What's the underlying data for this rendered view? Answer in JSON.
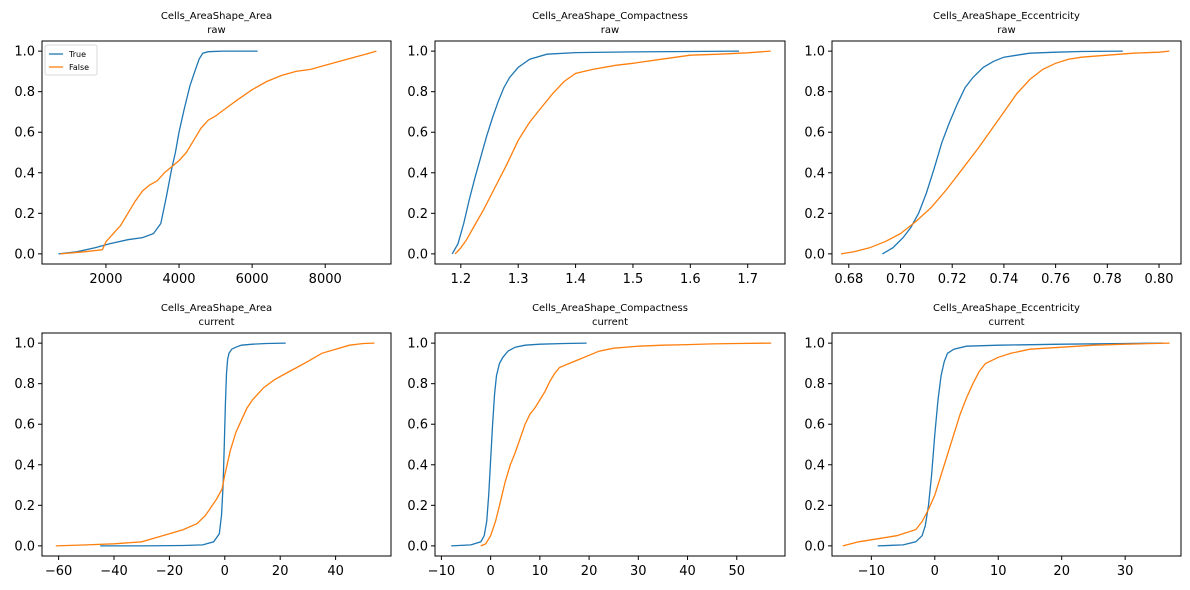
{
  "chart_data": [
    {
      "type": "line",
      "title": "Cells_AreaShape_Area",
      "subtitle": "raw",
      "xlim": [
        250,
        9800
      ],
      "ylim": [
        -0.05,
        1.05
      ],
      "xticks": [
        2000,
        4000,
        6000,
        8000
      ],
      "xtick_labels": [
        "2000",
        "4000",
        "6000",
        "8000"
      ],
      "yticks": [
        0,
        0.2,
        0.4,
        0.6,
        0.8,
        1
      ],
      "ytick_labels": [
        "0.0",
        "0.2",
        "0.4",
        "0.6",
        "0.8",
        "1.0"
      ],
      "legend": {
        "placement": "upper-left",
        "entries": [
          "True",
          "False"
        ]
      },
      "series": [
        {
          "name": "True",
          "color": "#1f77b4",
          "x": [
            700,
            1200,
            1700,
            2100,
            2600,
            3000,
            3300,
            3500,
            3650,
            3800,
            3900,
            4000,
            4150,
            4300,
            4450,
            4550,
            4650,
            4800,
            5200,
            6150
          ],
          "y": [
            0,
            0.01,
            0.03,
            0.05,
            0.07,
            0.08,
            0.1,
            0.15,
            0.28,
            0.42,
            0.5,
            0.6,
            0.72,
            0.83,
            0.91,
            0.96,
            0.99,
            0.997,
            1.0,
            1.0
          ]
        },
        {
          "name": "False",
          "color": "#ff7f0e",
          "x": [
            750,
            1400,
            1900,
            2000,
            2200,
            2400,
            2600,
            2800,
            3000,
            3200,
            3400,
            3600,
            3800,
            4000,
            4200,
            4400,
            4600,
            4800,
            5000,
            5300,
            5600,
            6000,
            6400,
            6800,
            7200,
            7600,
            8000,
            8400,
            8800,
            9200,
            9400
          ],
          "y": [
            0,
            0.01,
            0.02,
            0.06,
            0.1,
            0.14,
            0.2,
            0.26,
            0.31,
            0.34,
            0.36,
            0.4,
            0.43,
            0.46,
            0.5,
            0.56,
            0.62,
            0.66,
            0.68,
            0.72,
            0.76,
            0.81,
            0.85,
            0.88,
            0.9,
            0.91,
            0.93,
            0.95,
            0.97,
            0.99,
            1.0
          ]
        }
      ]
    },
    {
      "type": "line",
      "title": "Cells_AreaShape_Compactness",
      "subtitle": "raw",
      "xlim": [
        1.155,
        1.765
      ],
      "ylim": [
        -0.05,
        1.05
      ],
      "xticks": [
        1.2,
        1.3,
        1.4,
        1.5,
        1.6,
        1.7
      ],
      "xtick_labels": [
        "1.2",
        "1.3",
        "1.4",
        "1.5",
        "1.6",
        "1.7"
      ],
      "yticks": [
        0,
        0.2,
        0.4,
        0.6,
        0.8,
        1
      ],
      "ytick_labels": [
        "0.0",
        "0.2",
        "0.4",
        "0.6",
        "0.8",
        "1.0"
      ],
      "series": [
        {
          "name": "True",
          "color": "#1f77b4",
          "x": [
            1.185,
            1.195,
            1.205,
            1.215,
            1.225,
            1.235,
            1.245,
            1.255,
            1.265,
            1.275,
            1.285,
            1.3,
            1.32,
            1.35,
            1.4,
            1.5,
            1.6,
            1.685
          ],
          "y": [
            0,
            0.05,
            0.15,
            0.27,
            0.38,
            0.48,
            0.58,
            0.67,
            0.75,
            0.82,
            0.87,
            0.92,
            0.96,
            0.985,
            0.993,
            0.996,
            0.998,
            1.0
          ]
        },
        {
          "name": "False",
          "color": "#ff7f0e",
          "x": [
            1.19,
            1.2,
            1.21,
            1.22,
            1.24,
            1.26,
            1.28,
            1.3,
            1.32,
            1.34,
            1.36,
            1.38,
            1.4,
            1.43,
            1.47,
            1.5,
            1.55,
            1.6,
            1.65,
            1.7,
            1.74
          ],
          "y": [
            0,
            0.03,
            0.07,
            0.12,
            0.22,
            0.33,
            0.44,
            0.56,
            0.65,
            0.72,
            0.79,
            0.85,
            0.89,
            0.91,
            0.93,
            0.94,
            0.96,
            0.98,
            0.985,
            0.992,
            1.0
          ]
        }
      ]
    },
    {
      "type": "line",
      "title": "Cells_AreaShape_Eccentricity",
      "subtitle": "raw",
      "xlim": [
        0.6735,
        0.8085
      ],
      "ylim": [
        -0.05,
        1.05
      ],
      "xticks": [
        0.68,
        0.7,
        0.72,
        0.74,
        0.76,
        0.78,
        0.8
      ],
      "xtick_labels": [
        "0.68",
        "0.70",
        "0.72",
        "0.74",
        "0.76",
        "0.78",
        "0.80"
      ],
      "yticks": [
        0,
        0.2,
        0.4,
        0.6,
        0.8,
        1
      ],
      "ytick_labels": [
        "0.0",
        "0.2",
        "0.4",
        "0.6",
        "0.8",
        "1.0"
      ],
      "series": [
        {
          "name": "True",
          "color": "#1f77b4",
          "x": [
            0.693,
            0.697,
            0.701,
            0.704,
            0.707,
            0.71,
            0.713,
            0.716,
            0.719,
            0.722,
            0.725,
            0.728,
            0.732,
            0.736,
            0.74,
            0.745,
            0.75,
            0.76,
            0.77,
            0.786
          ],
          "y": [
            0,
            0.03,
            0.08,
            0.13,
            0.2,
            0.3,
            0.42,
            0.55,
            0.65,
            0.74,
            0.82,
            0.87,
            0.92,
            0.95,
            0.97,
            0.98,
            0.99,
            0.995,
            0.998,
            1.0
          ]
        },
        {
          "name": "False",
          "color": "#ff7f0e",
          "x": [
            0.677,
            0.682,
            0.688,
            0.694,
            0.7,
            0.706,
            0.712,
            0.718,
            0.724,
            0.73,
            0.735,
            0.74,
            0.745,
            0.75,
            0.755,
            0.76,
            0.765,
            0.77,
            0.78,
            0.79,
            0.8,
            0.804
          ],
          "y": [
            0,
            0.01,
            0.03,
            0.06,
            0.1,
            0.16,
            0.23,
            0.32,
            0.42,
            0.52,
            0.61,
            0.7,
            0.79,
            0.86,
            0.91,
            0.94,
            0.96,
            0.97,
            0.98,
            0.99,
            0.995,
            1.0
          ]
        }
      ]
    },
    {
      "type": "line",
      "title": "Cells_AreaShape_Area",
      "subtitle": "current",
      "xlim": [
        -66,
        60
      ],
      "ylim": [
        -0.05,
        1.05
      ],
      "xticks": [
        -60,
        -40,
        -20,
        0,
        20,
        40
      ],
      "xtick_labels": [
        "−60",
        "−40",
        "−20",
        "0",
        "20",
        "40"
      ],
      "yticks": [
        0,
        0.2,
        0.4,
        0.6,
        0.8,
        1
      ],
      "ytick_labels": [
        "0.0",
        "0.2",
        "0.4",
        "0.6",
        "0.8",
        "1.0"
      ],
      "series": [
        {
          "name": "True",
          "color": "#1f77b4",
          "x": [
            -45,
            -30,
            -15,
            -8,
            -4,
            -2,
            -1.2,
            -0.6,
            -0.2,
            0.2,
            0.6,
            1,
            1.5,
            2.5,
            4,
            6,
            10,
            15,
            22
          ],
          "y": [
            0,
            0,
            0.002,
            0.005,
            0.02,
            0.06,
            0.15,
            0.3,
            0.5,
            0.7,
            0.85,
            0.92,
            0.95,
            0.97,
            0.98,
            0.99,
            0.995,
            0.998,
            1.0
          ]
        },
        {
          "name": "False",
          "color": "#ff7f0e",
          "x": [
            -61,
            -50,
            -40,
            -30,
            -25,
            -20,
            -15,
            -10,
            -7,
            -5,
            -3,
            -1,
            0,
            2,
            4,
            6,
            8,
            10,
            14,
            18,
            22,
            26,
            30,
            35,
            40,
            45,
            50,
            54
          ],
          "y": [
            0,
            0.005,
            0.01,
            0.02,
            0.04,
            0.06,
            0.08,
            0.11,
            0.15,
            0.19,
            0.23,
            0.28,
            0.35,
            0.47,
            0.56,
            0.62,
            0.68,
            0.72,
            0.78,
            0.82,
            0.85,
            0.88,
            0.91,
            0.95,
            0.97,
            0.99,
            0.998,
            1.0
          ]
        }
      ]
    },
    {
      "type": "line",
      "title": "Cells_AreaShape_Compactness",
      "subtitle": "current",
      "xlim": [
        -11.3,
        59.8
      ],
      "ylim": [
        -0.05,
        1.05
      ],
      "xticks": [
        -10,
        0,
        10,
        20,
        30,
        40,
        50
      ],
      "xtick_labels": [
        "−10",
        "0",
        "10",
        "20",
        "30",
        "40",
        "50"
      ],
      "yticks": [
        0,
        0.2,
        0.4,
        0.6,
        0.8,
        1
      ],
      "ytick_labels": [
        "0.0",
        "0.2",
        "0.4",
        "0.6",
        "0.8",
        "1.0"
      ],
      "series": [
        {
          "name": "True",
          "color": "#1f77b4",
          "x": [
            -8,
            -4,
            -2,
            -1.3,
            -0.8,
            -0.4,
            0,
            0.4,
            0.8,
            1.2,
            1.8,
            2.5,
            3.5,
            5,
            7,
            10,
            15,
            19.5
          ],
          "y": [
            0,
            0.005,
            0.02,
            0.05,
            0.12,
            0.25,
            0.42,
            0.6,
            0.75,
            0.84,
            0.9,
            0.93,
            0.96,
            0.98,
            0.99,
            0.995,
            0.998,
            1.0
          ]
        },
        {
          "name": "False",
          "color": "#ff7f0e",
          "x": [
            -2,
            -1,
            0,
            1,
            2,
            3,
            4,
            5,
            6,
            7,
            8,
            9,
            10,
            11,
            12,
            13,
            14,
            16,
            18,
            20,
            22,
            25,
            30,
            35,
            40,
            45,
            50,
            57
          ],
          "y": [
            0,
            0.01,
            0.05,
            0.12,
            0.22,
            0.32,
            0.4,
            0.46,
            0.53,
            0.6,
            0.65,
            0.68,
            0.72,
            0.76,
            0.81,
            0.85,
            0.88,
            0.9,
            0.92,
            0.94,
            0.96,
            0.975,
            0.985,
            0.99,
            0.993,
            0.996,
            0.998,
            1.0
          ]
        }
      ]
    },
    {
      "type": "line",
      "title": "Cells_AreaShape_Eccentricity",
      "subtitle": "current",
      "xlim": [
        -16.2,
        38.8
      ],
      "ylim": [
        -0.05,
        1.05
      ],
      "xticks": [
        -10,
        0,
        10,
        20,
        30
      ],
      "xtick_labels": [
        "−10",
        "0",
        "10",
        "20",
        "30"
      ],
      "yticks": [
        0,
        0.2,
        0.4,
        0.6,
        0.8,
        1
      ],
      "ytick_labels": [
        "0.0",
        "0.2",
        "0.4",
        "0.6",
        "0.8",
        "1.0"
      ],
      "series": [
        {
          "name": "True",
          "color": "#1f77b4",
          "x": [
            -9,
            -5,
            -3,
            -2,
            -1.5,
            -1,
            -0.5,
            0,
            0.5,
            1,
            1.5,
            2,
            3,
            5,
            10,
            20,
            30,
            36
          ],
          "y": [
            0,
            0.005,
            0.02,
            0.05,
            0.1,
            0.2,
            0.35,
            0.55,
            0.72,
            0.84,
            0.91,
            0.95,
            0.97,
            0.985,
            0.99,
            0.995,
            0.998,
            1.0
          ]
        },
        {
          "name": "False",
          "color": "#ff7f0e",
          "x": [
            -14.5,
            -12,
            -10,
            -6,
            -3,
            -2,
            -1,
            0,
            1,
            2,
            3,
            4,
            5,
            6,
            7,
            8,
            10,
            12,
            15,
            20,
            25,
            30,
            37
          ],
          "y": [
            0,
            0.02,
            0.03,
            0.05,
            0.08,
            0.12,
            0.18,
            0.25,
            0.35,
            0.45,
            0.55,
            0.65,
            0.73,
            0.8,
            0.86,
            0.9,
            0.93,
            0.95,
            0.97,
            0.98,
            0.99,
            0.995,
            1.0
          ]
        }
      ]
    }
  ]
}
